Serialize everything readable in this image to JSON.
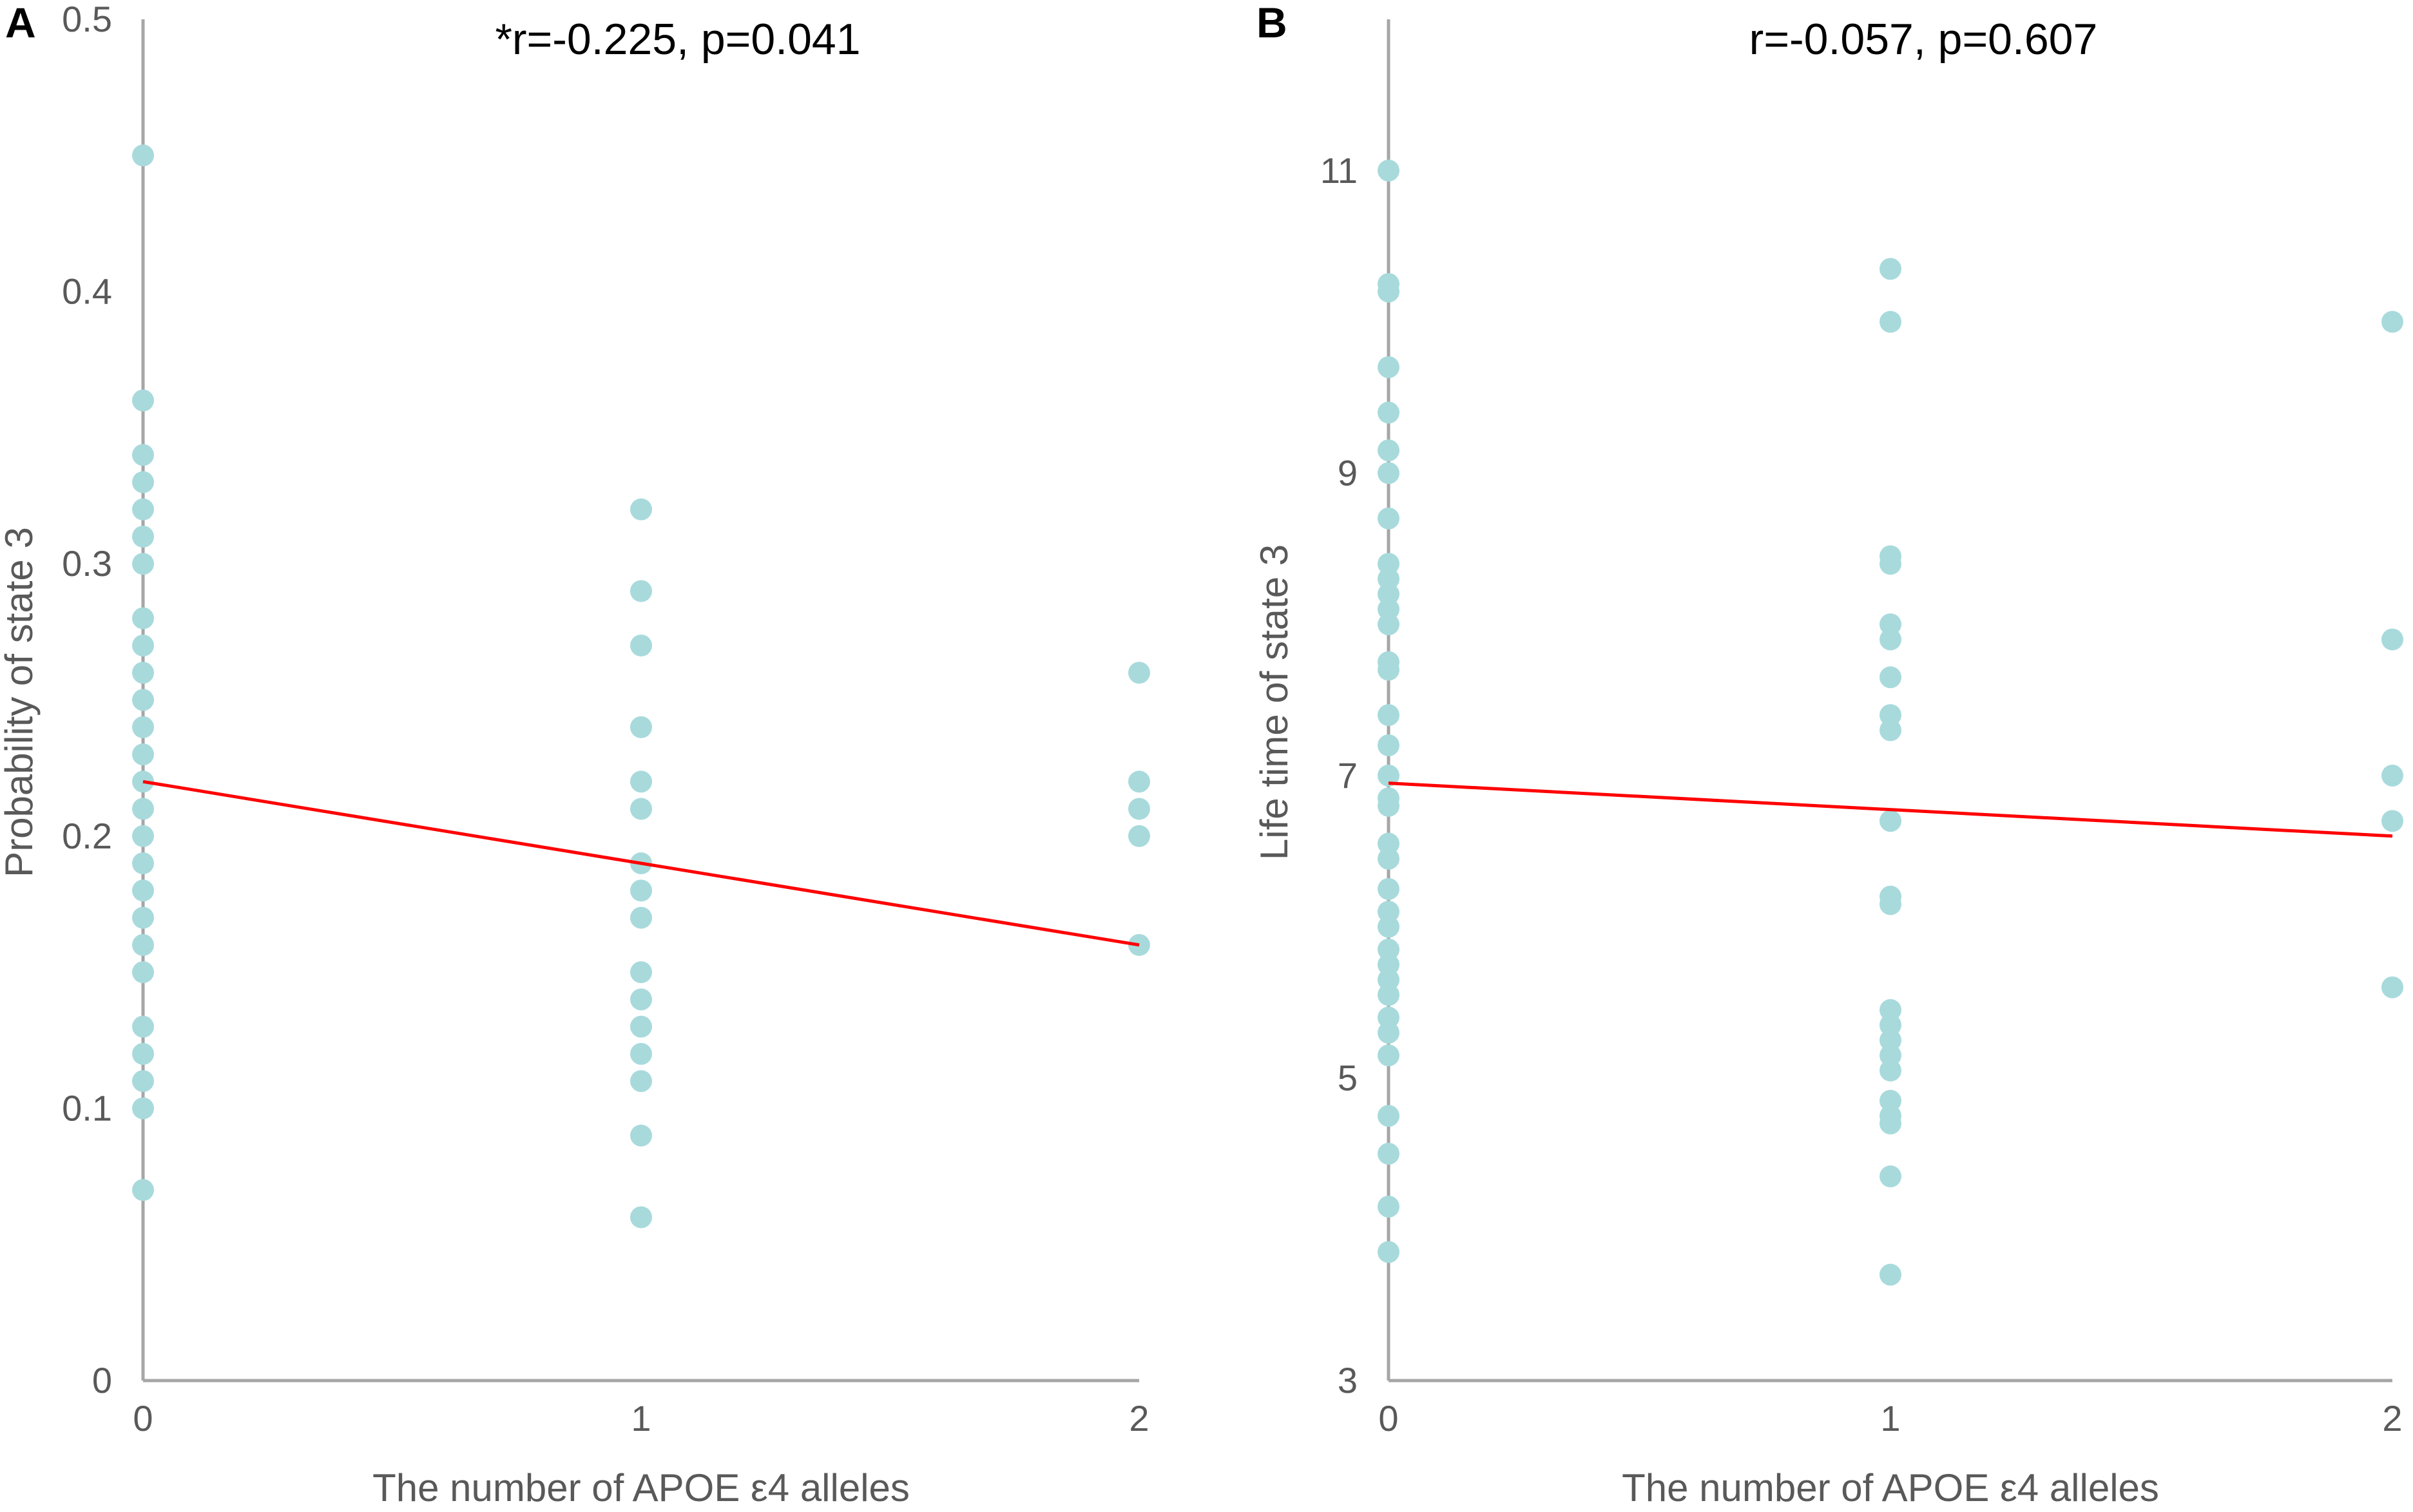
{
  "chart_data": [
    {
      "type": "scatter",
      "panel_label": "A",
      "title": "*r=-0.225, p=0.041",
      "xlabel": "The number of APOE ε4 alleles",
      "ylabel": "Probability of state 3",
      "xlim": [
        0,
        2
      ],
      "ylim": [
        0,
        0.5
      ],
      "xticks": [
        "0",
        "1",
        "2"
      ],
      "yticks": [
        "0",
        "0.1",
        "0.2",
        "0.3",
        "0.4",
        "0.5"
      ],
      "ytick_values": [
        0,
        0.1,
        0.2,
        0.3,
        0.4,
        0.5
      ],
      "point_color": "#a8dadc",
      "line_color": "#ff0000",
      "points": [
        {
          "x": 0,
          "y": 0.45
        },
        {
          "x": 0,
          "y": 0.36
        },
        {
          "x": 0,
          "y": 0.34
        },
        {
          "x": 0,
          "y": 0.33
        },
        {
          "x": 0,
          "y": 0.32
        },
        {
          "x": 0,
          "y": 0.31
        },
        {
          "x": 0,
          "y": 0.3
        },
        {
          "x": 0,
          "y": 0.28
        },
        {
          "x": 0,
          "y": 0.27
        },
        {
          "x": 0,
          "y": 0.26
        },
        {
          "x": 0,
          "y": 0.25
        },
        {
          "x": 0,
          "y": 0.24
        },
        {
          "x": 0,
          "y": 0.23
        },
        {
          "x": 0,
          "y": 0.22
        },
        {
          "x": 0,
          "y": 0.21
        },
        {
          "x": 0,
          "y": 0.2
        },
        {
          "x": 0,
          "y": 0.19
        },
        {
          "x": 0,
          "y": 0.18
        },
        {
          "x": 0,
          "y": 0.17
        },
        {
          "x": 0,
          "y": 0.16
        },
        {
          "x": 0,
          "y": 0.15
        },
        {
          "x": 0,
          "y": 0.13
        },
        {
          "x": 0,
          "y": 0.12
        },
        {
          "x": 0,
          "y": 0.11
        },
        {
          "x": 0,
          "y": 0.1
        },
        {
          "x": 0,
          "y": 0.07
        },
        {
          "x": 1,
          "y": 0.32
        },
        {
          "x": 1,
          "y": 0.29
        },
        {
          "x": 1,
          "y": 0.27
        },
        {
          "x": 1,
          "y": 0.24
        },
        {
          "x": 1,
          "y": 0.22
        },
        {
          "x": 1,
          "y": 0.21
        },
        {
          "x": 1,
          "y": 0.19
        },
        {
          "x": 1,
          "y": 0.18
        },
        {
          "x": 1,
          "y": 0.17
        },
        {
          "x": 1,
          "y": 0.15
        },
        {
          "x": 1,
          "y": 0.14
        },
        {
          "x": 1,
          "y": 0.13
        },
        {
          "x": 1,
          "y": 0.12
        },
        {
          "x": 1,
          "y": 0.11
        },
        {
          "x": 1,
          "y": 0.09
        },
        {
          "x": 1,
          "y": 0.06
        },
        {
          "x": 2,
          "y": 0.26
        },
        {
          "x": 2,
          "y": 0.22
        },
        {
          "x": 2,
          "y": 0.21
        },
        {
          "x": 2,
          "y": 0.2
        },
        {
          "x": 2,
          "y": 0.16
        }
      ],
      "regression_line": {
        "x": [
          0,
          2
        ],
        "y": [
          0.22,
          0.16
        ]
      }
    },
    {
      "type": "scatter",
      "panel_label": "B",
      "title": "r=-0.057, p=0.607",
      "xlabel": "The number of APOE ε4 alleles",
      "ylabel": "Life time of state 3",
      "xlim": [
        0,
        2
      ],
      "ylim": [
        3,
        12
      ],
      "xticks": [
        "0",
        "1",
        "2"
      ],
      "yticks": [
        "3",
        "5",
        "7",
        "9",
        "11"
      ],
      "ytick_values": [
        3,
        5,
        7,
        9,
        11
      ],
      "point_color": "#a8dadc",
      "line_color": "#ff0000",
      "points": [
        {
          "x": 0,
          "y": 11.0
        },
        {
          "x": 0,
          "y": 10.25
        },
        {
          "x": 0,
          "y": 10.2
        },
        {
          "x": 0,
          "y": 9.7
        },
        {
          "x": 0,
          "y": 9.4
        },
        {
          "x": 0,
          "y": 9.15
        },
        {
          "x": 0,
          "y": 9.0
        },
        {
          "x": 0,
          "y": 8.7
        },
        {
          "x": 0,
          "y": 8.4
        },
        {
          "x": 0,
          "y": 8.3
        },
        {
          "x": 0,
          "y": 8.2
        },
        {
          "x": 0,
          "y": 8.1
        },
        {
          "x": 0,
          "y": 8.0
        },
        {
          "x": 0,
          "y": 7.75
        },
        {
          "x": 0,
          "y": 7.7
        },
        {
          "x": 0,
          "y": 7.4
        },
        {
          "x": 0,
          "y": 7.2
        },
        {
          "x": 0,
          "y": 7.0
        },
        {
          "x": 0,
          "y": 6.85
        },
        {
          "x": 0,
          "y": 6.8
        },
        {
          "x": 0,
          "y": 6.55
        },
        {
          "x": 0,
          "y": 6.45
        },
        {
          "x": 0,
          "y": 6.25
        },
        {
          "x": 0,
          "y": 6.1
        },
        {
          "x": 0,
          "y": 6.0
        },
        {
          "x": 0,
          "y": 5.85
        },
        {
          "x": 0,
          "y": 5.75
        },
        {
          "x": 0,
          "y": 5.65
        },
        {
          "x": 0,
          "y": 5.55
        },
        {
          "x": 0,
          "y": 5.4
        },
        {
          "x": 0,
          "y": 5.3
        },
        {
          "x": 0,
          "y": 5.15
        },
        {
          "x": 0,
          "y": 4.75
        },
        {
          "x": 0,
          "y": 4.5
        },
        {
          "x": 0,
          "y": 4.15
        },
        {
          "x": 0,
          "y": 3.85
        },
        {
          "x": 1,
          "y": 10.35
        },
        {
          "x": 1,
          "y": 10.0
        },
        {
          "x": 1,
          "y": 8.45
        },
        {
          "x": 1,
          "y": 8.4
        },
        {
          "x": 1,
          "y": 8.0
        },
        {
          "x": 1,
          "y": 7.9
        },
        {
          "x": 1,
          "y": 7.65
        },
        {
          "x": 1,
          "y": 7.4
        },
        {
          "x": 1,
          "y": 7.3
        },
        {
          "x": 1,
          "y": 6.7
        },
        {
          "x": 1,
          "y": 6.2
        },
        {
          "x": 1,
          "y": 6.15
        },
        {
          "x": 1,
          "y": 5.45
        },
        {
          "x": 1,
          "y": 5.35
        },
        {
          "x": 1,
          "y": 5.25
        },
        {
          "x": 1,
          "y": 5.15
        },
        {
          "x": 1,
          "y": 5.05
        },
        {
          "x": 1,
          "y": 4.85
        },
        {
          "x": 1,
          "y": 4.75
        },
        {
          "x": 1,
          "y": 4.7
        },
        {
          "x": 1,
          "y": 4.35
        },
        {
          "x": 1,
          "y": 3.7
        },
        {
          "x": 2,
          "y": 10.0
        },
        {
          "x": 2,
          "y": 7.9
        },
        {
          "x": 2,
          "y": 7.0
        },
        {
          "x": 2,
          "y": 6.7
        },
        {
          "x": 2,
          "y": 5.6
        }
      ],
      "regression_line": {
        "x": [
          0,
          2
        ],
        "y": [
          6.95,
          6.6
        ]
      }
    }
  ]
}
